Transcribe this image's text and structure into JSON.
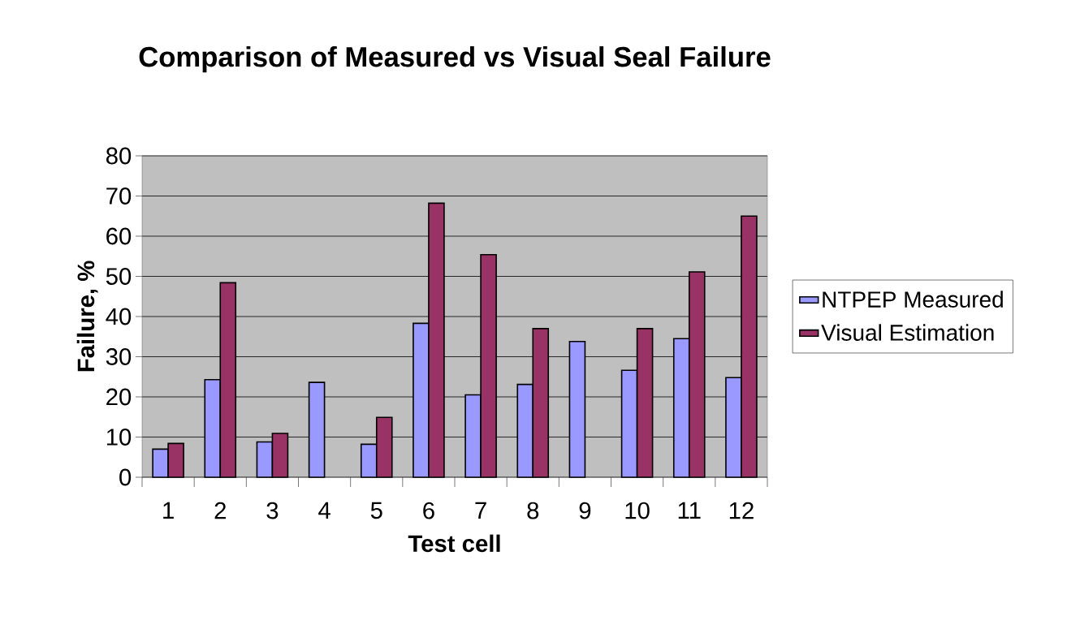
{
  "chart_data": {
    "type": "bar",
    "title": "Comparison of Measured vs Visual Seal Failure",
    "xlabel": "Test cell",
    "ylabel": "Failure, %",
    "categories": [
      "1",
      "2",
      "3",
      "4",
      "5",
      "6",
      "7",
      "8",
      "9",
      "10",
      "11",
      "12"
    ],
    "series": [
      {
        "name": "NTPEP Measured",
        "color": "#9999ff",
        "values": [
          7.0,
          24.3,
          8.8,
          23.6,
          8.2,
          38.3,
          20.5,
          23.1,
          33.8,
          26.6,
          34.5,
          24.8
        ]
      },
      {
        "name": "Visual Estimation",
        "color": "#993366",
        "values": [
          8.4,
          48.4,
          10.9,
          null,
          14.9,
          68.2,
          55.4,
          37.0,
          null,
          37.0,
          51.1,
          65.0
        ]
      }
    ],
    "ylim": [
      0,
      80
    ],
    "yticks": [
      0,
      10,
      20,
      30,
      40,
      50,
      60,
      70,
      80
    ],
    "grid": "y",
    "legend": "right"
  }
}
